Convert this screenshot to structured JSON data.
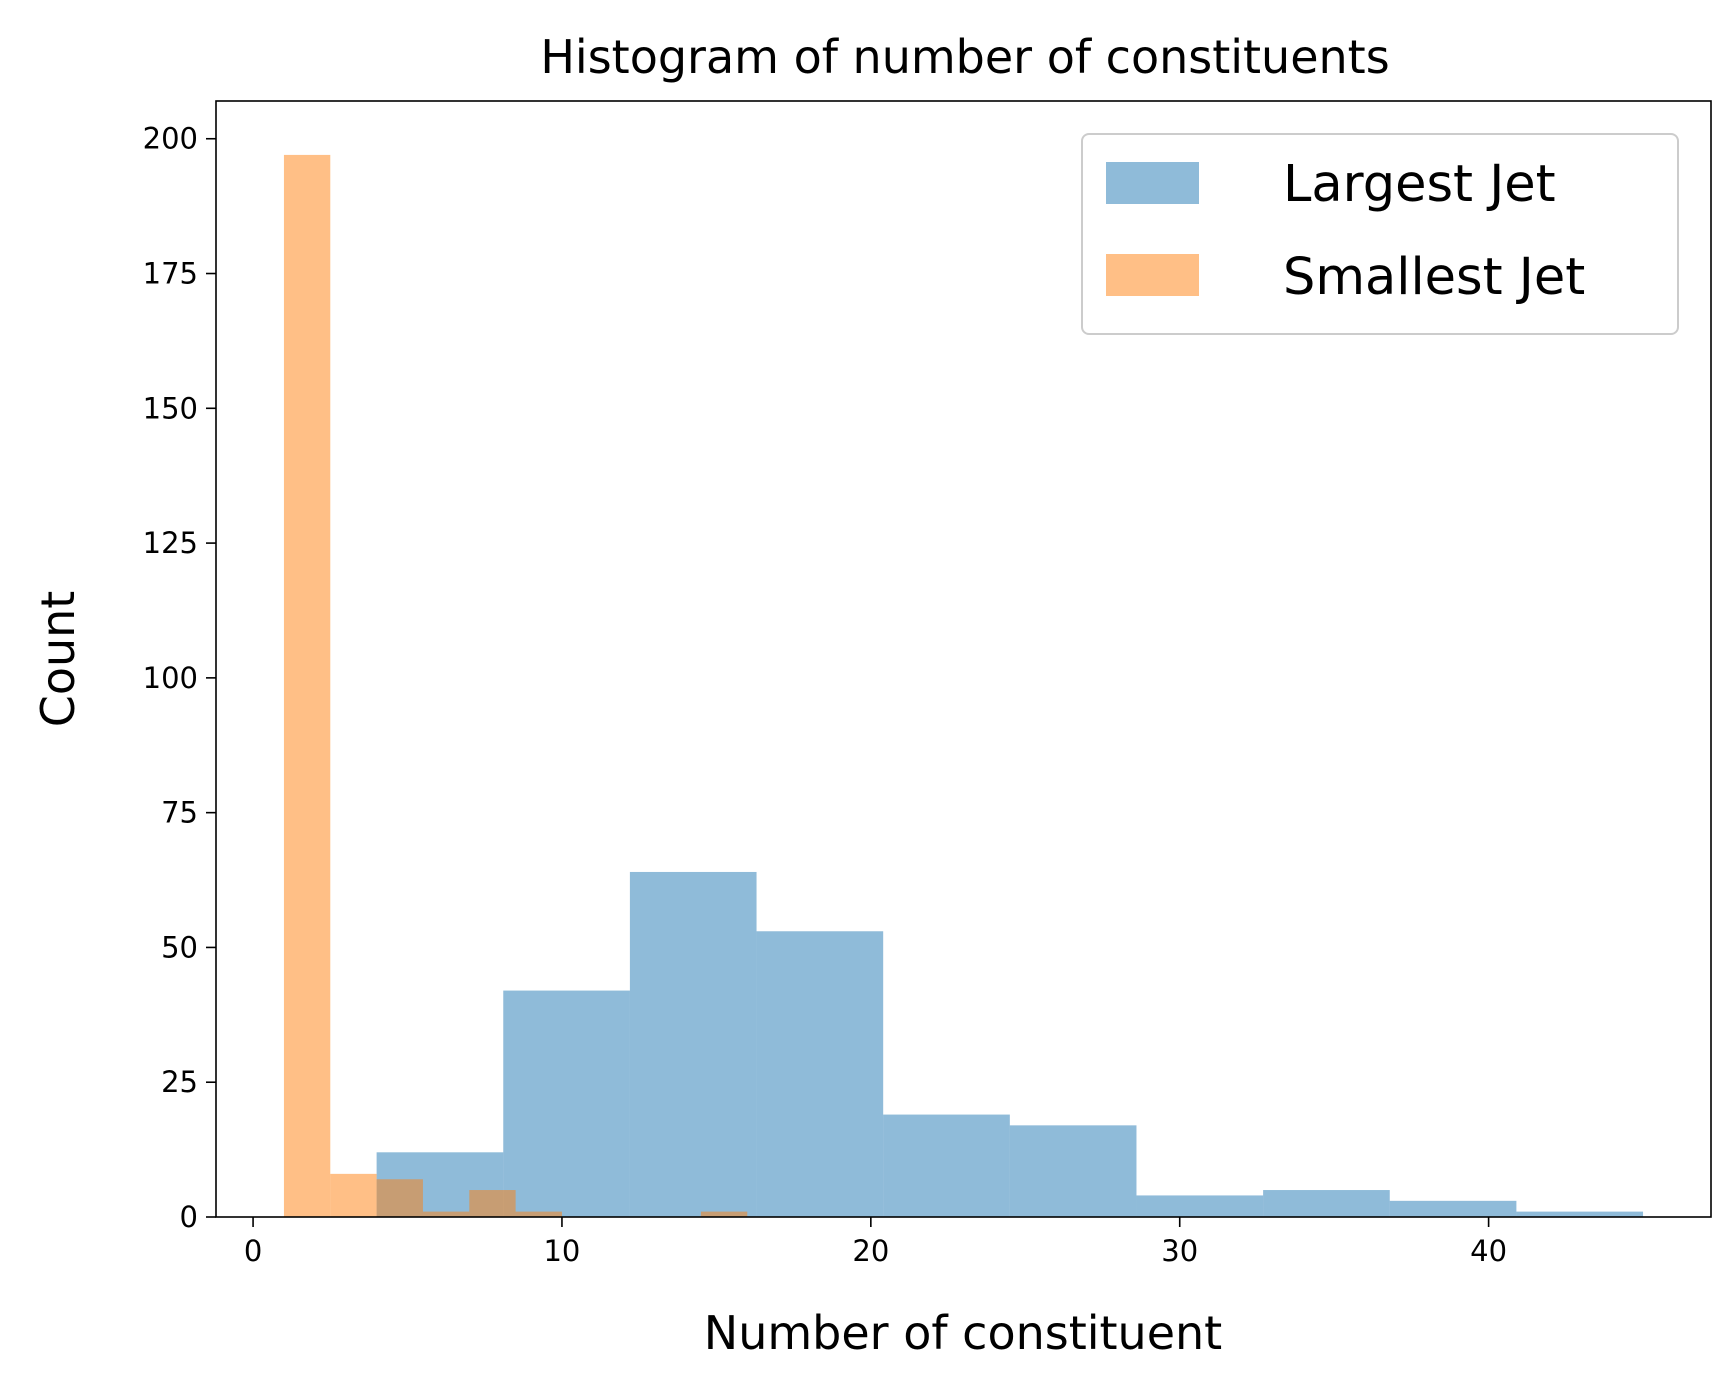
{
  "chart_data": {
    "type": "bar",
    "title": "Histogram of number of constituents",
    "xlabel": "Number of constituent",
    "ylabel": "Count",
    "xlim": [
      -1.2,
      47.2
    ],
    "ylim": [
      0,
      207
    ],
    "xticks": [
      0,
      10,
      20,
      30,
      40
    ],
    "yticks": [
      0,
      25,
      50,
      75,
      100,
      125,
      150,
      175,
      200
    ],
    "grid": false,
    "legend_position": "top-right",
    "series": [
      {
        "name": "Largest Jet",
        "color": "#1f77b4",
        "opacity": 0.5,
        "bins": [
          {
            "x0": 4.0,
            "x1": 8.1,
            "count": 12
          },
          {
            "x0": 8.1,
            "x1": 12.2,
            "count": 42
          },
          {
            "x0": 12.2,
            "x1": 16.3,
            "count": 64
          },
          {
            "x0": 16.3,
            "x1": 20.4,
            "count": 53
          },
          {
            "x0": 20.4,
            "x1": 24.5,
            "count": 19
          },
          {
            "x0": 24.5,
            "x1": 28.6,
            "count": 17
          },
          {
            "x0": 28.6,
            "x1": 32.7,
            "count": 4
          },
          {
            "x0": 32.7,
            "x1": 36.8,
            "count": 5
          },
          {
            "x0": 36.8,
            "x1": 40.9,
            "count": 3
          },
          {
            "x0": 40.9,
            "x1": 45.0,
            "count": 1
          }
        ]
      },
      {
        "name": "Smallest Jet",
        "color": "#ff7f0e",
        "opacity": 0.5,
        "bins": [
          {
            "x0": 1.0,
            "x1": 2.5,
            "count": 197
          },
          {
            "x0": 2.5,
            "x1": 4.0,
            "count": 8
          },
          {
            "x0": 4.0,
            "x1": 5.5,
            "count": 7
          },
          {
            "x0": 5.5,
            "x1": 7.0,
            "count": 1
          },
          {
            "x0": 7.0,
            "x1": 8.5,
            "count": 5
          },
          {
            "x0": 8.5,
            "x1": 10.0,
            "count": 1
          },
          {
            "x0": 10.0,
            "x1": 11.5,
            "count": 0
          },
          {
            "x0": 11.5,
            "x1": 13.0,
            "count": 0
          },
          {
            "x0": 13.0,
            "x1": 14.5,
            "count": 0
          },
          {
            "x0": 14.5,
            "x1": 16.0,
            "count": 1
          }
        ]
      }
    ]
  }
}
